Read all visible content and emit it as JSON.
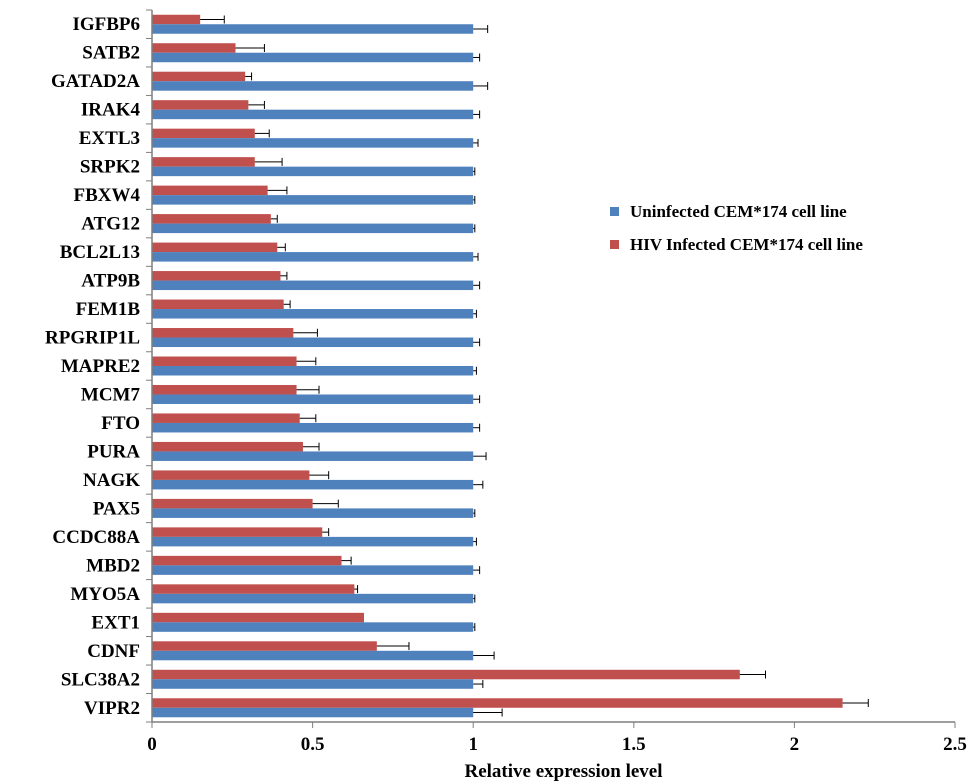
{
  "chart_data": {
    "type": "bar",
    "orientation": "horizontal",
    "categories": [
      "IGFBP6",
      "SATB2",
      "GATAD2A",
      "IRAK4",
      "EXTL3",
      "SRPK2",
      "FBXW4",
      "ATG12",
      "BCL2L13",
      "ATP9B",
      "FEM1B",
      "RPGRIP1L",
      "MAPRE2",
      "MCM7",
      "FTO",
      "PURA",
      "NAGK",
      "PAX5",
      "CCDC88A",
      "MBD2",
      "MYO5A",
      "EXT1",
      "CDNF",
      "SLC38A2",
      "VIPR2"
    ],
    "series": [
      {
        "name": "Uninfected CEM*174 cell line",
        "color": "#4f81bd",
        "values": [
          1.0,
          1.0,
          1.0,
          1.0,
          1.0,
          1.0,
          1.0,
          1.0,
          1.0,
          1.0,
          1.0,
          1.0,
          1.0,
          1.0,
          1.0,
          1.0,
          1.0,
          1.0,
          1.0,
          1.0,
          1.0,
          1.0,
          1.0,
          1.0,
          1.0
        ],
        "errors": [
          0.045,
          0.02,
          0.045,
          0.02,
          0.015,
          0.005,
          0.005,
          0.005,
          0.015,
          0.02,
          0.01,
          0.02,
          0.01,
          0.02,
          0.02,
          0.04,
          0.03,
          0.005,
          0.01,
          0.02,
          0.005,
          0.005,
          0.065,
          0.03,
          0.09
        ]
      },
      {
        "name": "HIV Infected CEM*174 cell line",
        "color": "#c0504d",
        "values": [
          0.15,
          0.26,
          0.29,
          0.3,
          0.32,
          0.32,
          0.36,
          0.37,
          0.39,
          0.4,
          0.41,
          0.44,
          0.45,
          0.45,
          0.46,
          0.47,
          0.49,
          0.5,
          0.53,
          0.59,
          0.63,
          0.66,
          0.7,
          1.83,
          2.15
        ],
        "errors": [
          0.075,
          0.09,
          0.02,
          0.05,
          0.045,
          0.085,
          0.06,
          0.02,
          0.025,
          0.02,
          0.02,
          0.075,
          0.06,
          0.07,
          0.05,
          0.05,
          0.06,
          0.08,
          0.02,
          0.03,
          0.01,
          0.0,
          0.1,
          0.08,
          0.08
        ]
      }
    ],
    "xlabel": "Relative expression level",
    "xlim": [
      0,
      2.5
    ],
    "xticks": [
      "0",
      "0.5",
      "1",
      "1.5",
      "2",
      "2.5"
    ],
    "grid": false,
    "legend_position": "right"
  }
}
